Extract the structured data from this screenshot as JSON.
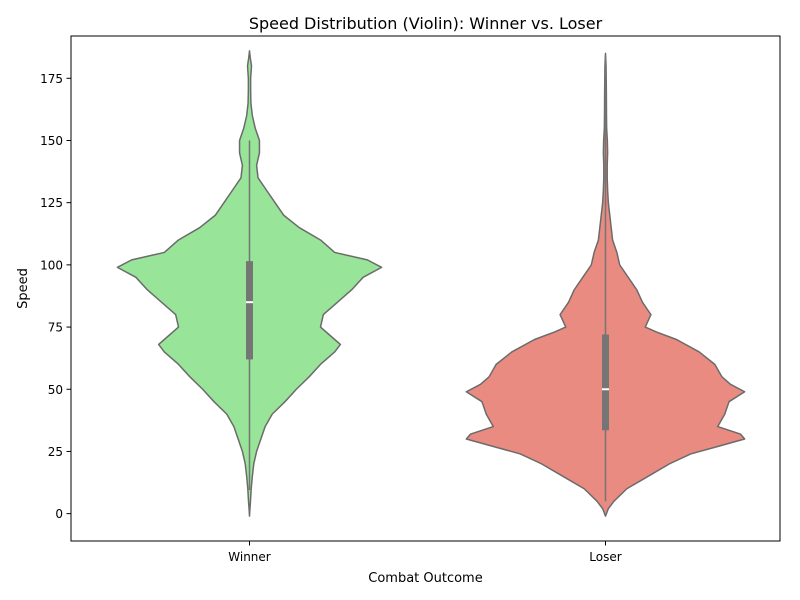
{
  "chart_data": {
    "type": "violin",
    "title": "Speed Distribution (Violin): Winner vs. Loser",
    "xlabel": "Combat Outcome",
    "ylabel": "Speed",
    "categories": [
      "Winner",
      "Loser"
    ],
    "ylim": [
      -11,
      192
    ],
    "yticks": [
      0,
      25,
      50,
      75,
      100,
      125,
      150,
      175
    ],
    "grid": false,
    "outline_color": "#6b6b6b",
    "box_color": "#757575",
    "violins": [
      {
        "category": "Winner",
        "color": "#98e498",
        "quartiles": {
          "whisker_low": 9.5,
          "q1": 62,
          "median": 85,
          "q3": 101.5,
          "whisker_high": 150
        },
        "profile": [
          [
            -1,
            0.0
          ],
          [
            2,
            0.003
          ],
          [
            5,
            0.007
          ],
          [
            10,
            0.012
          ],
          [
            15,
            0.02
          ],
          [
            20,
            0.03
          ],
          [
            25,
            0.05
          ],
          [
            30,
            0.08
          ],
          [
            35,
            0.11
          ],
          [
            40,
            0.16
          ],
          [
            45,
            0.25
          ],
          [
            50,
            0.33
          ],
          [
            55,
            0.42
          ],
          [
            60,
            0.5
          ],
          [
            65,
            0.6
          ],
          [
            68,
            0.64
          ],
          [
            70,
            0.6
          ],
          [
            75,
            0.5
          ],
          [
            80,
            0.52
          ],
          [
            85,
            0.62
          ],
          [
            90,
            0.72
          ],
          [
            95,
            0.8
          ],
          [
            99,
            0.93
          ],
          [
            102,
            0.83
          ],
          [
            105,
            0.6
          ],
          [
            110,
            0.5
          ],
          [
            115,
            0.35
          ],
          [
            120,
            0.24
          ],
          [
            125,
            0.18
          ],
          [
            130,
            0.12
          ],
          [
            135,
            0.06
          ],
          [
            140,
            0.05
          ],
          [
            145,
            0.07
          ],
          [
            150,
            0.07
          ],
          [
            155,
            0.04
          ],
          [
            160,
            0.02
          ],
          [
            165,
            0.01
          ],
          [
            170,
            0.008
          ],
          [
            175,
            0.008
          ],
          [
            180,
            0.014
          ],
          [
            183,
            0.006
          ],
          [
            186,
            0.0
          ]
        ]
      },
      {
        "category": "Loser",
        "color": "#e98b80",
        "quartiles": {
          "whisker_low": 5,
          "q1": 33.5,
          "median": 50,
          "q3": 72,
          "whisker_high": 184
        },
        "profile": [
          [
            -1,
            0.0
          ],
          [
            2,
            0.02
          ],
          [
            5,
            0.06
          ],
          [
            10,
            0.15
          ],
          [
            15,
            0.3
          ],
          [
            20,
            0.45
          ],
          [
            24,
            0.6
          ],
          [
            27,
            0.79
          ],
          [
            30,
            0.98
          ],
          [
            32,
            0.95
          ],
          [
            35,
            0.79
          ],
          [
            40,
            0.84
          ],
          [
            45,
            0.87
          ],
          [
            49,
            0.98
          ],
          [
            52,
            0.88
          ],
          [
            55,
            0.82
          ],
          [
            60,
            0.77
          ],
          [
            65,
            0.66
          ],
          [
            70,
            0.5
          ],
          [
            73,
            0.36
          ],
          [
            75,
            0.28
          ],
          [
            80,
            0.32
          ],
          [
            85,
            0.26
          ],
          [
            90,
            0.22
          ],
          [
            95,
            0.16
          ],
          [
            100,
            0.1
          ],
          [
            105,
            0.08
          ],
          [
            110,
            0.05
          ],
          [
            115,
            0.04
          ],
          [
            120,
            0.03
          ],
          [
            125,
            0.02
          ],
          [
            130,
            0.015
          ],
          [
            135,
            0.012
          ],
          [
            140,
            0.012
          ],
          [
            145,
            0.015
          ],
          [
            150,
            0.013
          ],
          [
            155,
            0.008
          ],
          [
            160,
            0.007
          ],
          [
            170,
            0.006
          ],
          [
            180,
            0.004
          ],
          [
            185,
            0.0
          ]
        ]
      }
    ]
  }
}
